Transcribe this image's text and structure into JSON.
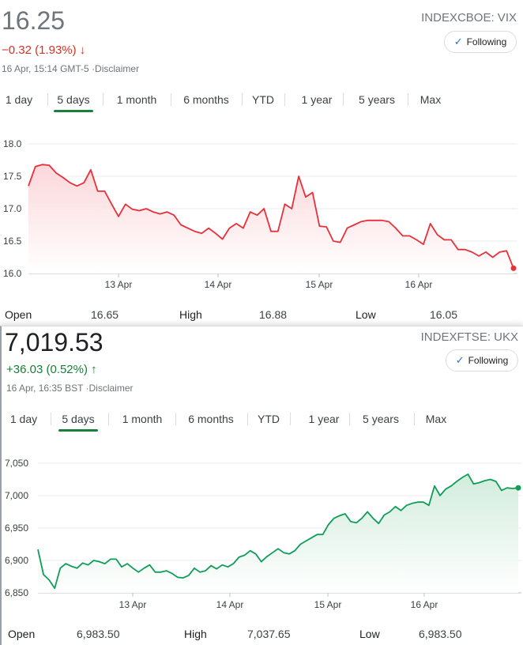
{
  "charts": [
    {
      "price": "16.25",
      "change": "−0.32 (1.93%) ↓",
      "meta": "16 Apr, 15:14 GMT-5 ·Disclaimer",
      "ticker": "INDEXCBOE: VIX",
      "following_label": "Following",
      "color": "#e8303a",
      "fill": "#fbd7da",
      "tabs": [
        "1 day",
        "5 days",
        "1 month",
        "6 months",
        "YTD",
        "1 year",
        "5 years",
        "Max"
      ],
      "active_tab": "5 days",
      "stats": {
        "open_label": "Open",
        "open": "16.65",
        "high_label": "High",
        "high": "16.88",
        "low_label": "Low",
        "low": "16.05"
      },
      "chart_data": {
        "type": "line",
        "y_ticks": [
          "18.0",
          "17.5",
          "17.0",
          "16.5",
          "16.0"
        ],
        "ylim": [
          16.0,
          18.0
        ],
        "x_ticks": [
          "13 Apr",
          "14 Apr",
          "15 Apr",
          "16 Apr"
        ],
        "values": [
          17.35,
          17.65,
          17.68,
          17.67,
          17.55,
          17.48,
          17.4,
          17.35,
          17.4,
          17.6,
          17.27,
          17.27,
          17.07,
          16.88,
          17.07,
          16.99,
          16.97,
          17.0,
          16.95,
          16.92,
          16.95,
          16.9,
          16.75,
          16.7,
          16.65,
          16.62,
          16.7,
          16.62,
          16.53,
          16.7,
          16.77,
          16.7,
          16.95,
          16.9,
          17.0,
          16.65,
          16.65,
          17.07,
          17.0,
          17.5,
          17.18,
          17.25,
          16.73,
          16.72,
          16.5,
          16.48,
          16.7,
          16.75,
          16.8,
          16.82,
          16.82,
          16.82,
          16.8,
          16.7,
          16.58,
          16.58,
          16.52,
          16.45,
          16.77,
          16.6,
          16.52,
          16.52,
          16.37,
          16.37,
          16.33,
          16.27,
          16.33,
          16.25,
          16.33,
          16.35,
          16.08
        ]
      }
    },
    {
      "price": "7,019.53",
      "change": "+36.03 (0.52%) ↑",
      "meta": "16 Apr, 16:35 BST ·Disclaimer",
      "ticker": "INDEXFTSE: UKX",
      "following_label": "Following",
      "color": "#0f9d58",
      "fill": "#d2ecdd",
      "tabs": [
        "1 day",
        "5 days",
        "1 month",
        "6 months",
        "YTD",
        "1 year",
        "5 years",
        "Max"
      ],
      "active_tab": "5 days",
      "stats": {
        "open_label": "Open",
        "open": "6,983.50",
        "high_label": "High",
        "high": "7,037.65",
        "low_label": "Low",
        "low": "6,983.50"
      },
      "chart_data": {
        "type": "line",
        "y_ticks": [
          "7,050",
          "7,000",
          "6,950",
          "6,900",
          "6,850"
        ],
        "ylim": [
          6850,
          7050
        ],
        "x_ticks": [
          "13 Apr",
          "14 Apr",
          "15 Apr",
          "16 Apr"
        ],
        "values": [
          6917,
          6878,
          6870,
          6857,
          6888,
          6895,
          6891,
          6888,
          6896,
          6893,
          6900,
          6898,
          6895,
          6902,
          6902,
          6890,
          6895,
          6888,
          6882,
          6888,
          6893,
          6882,
          6882,
          6884,
          6880,
          6874,
          6873,
          6877,
          6888,
          6882,
          6884,
          6892,
          6887,
          6893,
          6890,
          6895,
          6905,
          6908,
          6915,
          6910,
          6898,
          6906,
          6912,
          6918,
          6912,
          6910,
          6915,
          6925,
          6930,
          6935,
          6940,
          6940,
          6955,
          6965,
          6969,
          6972,
          6960,
          6958,
          6965,
          6975,
          6965,
          6957,
          6970,
          6975,
          6983,
          6977,
          6985,
          6988,
          6990,
          6990,
          6985,
          7015,
          7000,
          7010,
          7015,
          7022,
          7028,
          7033,
          7018,
          7020,
          7023,
          7025,
          7022,
          7008,
          7012,
          7011,
          7012
        ]
      }
    }
  ]
}
